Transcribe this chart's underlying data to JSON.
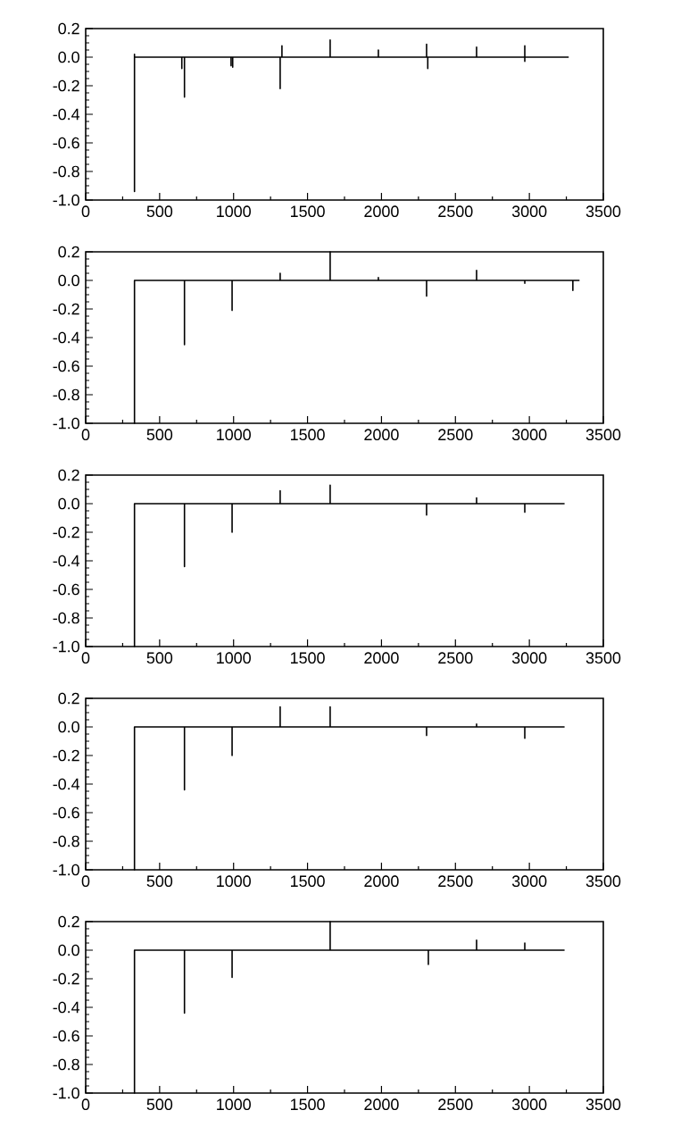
{
  "chart_data": [
    {
      "type": "line",
      "xlim": [
        0,
        3500
      ],
      "ylim": [
        -1,
        0.2
      ],
      "xticks": [
        0,
        500,
        1000,
        1500,
        2000,
        2500,
        3000,
        3500
      ],
      "yticks": [
        {
          "value": -1,
          "label": "-1.0"
        },
        {
          "value": -0.8,
          "label": "-0.8"
        },
        {
          "value": -0.6,
          "label": "-0.6"
        },
        {
          "value": -0.4,
          "label": "-0.4"
        },
        {
          "value": -0.2,
          "label": "-0.2"
        },
        {
          "value": 0,
          "label": "0.0"
        },
        {
          "value": 0.2,
          "label": "0.2"
        }
      ],
      "series": [
        {
          "color": "#000000",
          "x": [
            330,
            330,
            330,
            330,
            650,
            650,
            650,
            668,
            668,
            668,
            983,
            983,
            983,
            994,
            994,
            994,
            1315,
            1315,
            1315,
            1327,
            1327,
            1327,
            1653,
            1653,
            1653,
            1979,
            1979,
            1979,
            2305,
            2305,
            2305,
            2313,
            2313,
            2313,
            2643,
            2643,
            2643,
            2969,
            2969,
            2969,
            2969,
            3266
          ],
          "values": [
            0,
            -0.94,
            0.02,
            0,
            0,
            -0.08,
            0,
            0,
            -0.28,
            0,
            0,
            -0.06,
            0,
            0,
            -0.07,
            0,
            0,
            -0.22,
            0,
            0,
            0.08,
            0,
            0,
            0.12,
            0,
            0,
            0.05,
            0,
            0,
            0.09,
            0,
            0,
            -0.08,
            0,
            0,
            0.07,
            0,
            0,
            0.08,
            -0.03,
            0,
            0
          ]
        }
      ]
    },
    {
      "type": "line",
      "xlim": [
        0,
        3500
      ],
      "ylim": [
        -1,
        0.2
      ],
      "xticks": [
        0,
        500,
        1000,
        1500,
        2000,
        2500,
        3000,
        3500
      ],
      "yticks": [
        {
          "value": -1,
          "label": "-1.0"
        },
        {
          "value": -0.8,
          "label": "-0.8"
        },
        {
          "value": -0.6,
          "label": "-0.6"
        },
        {
          "value": -0.4,
          "label": "-0.4"
        },
        {
          "value": -0.2,
          "label": "-0.2"
        },
        {
          "value": 0,
          "label": "0.0"
        },
        {
          "value": 0.2,
          "label": "0.2"
        }
      ],
      "series": [
        {
          "color": "#000000",
          "x": [
            330,
            330,
            330,
            668,
            668,
            668,
            990,
            990,
            990,
            1315,
            1315,
            1315,
            1653,
            1653,
            1653,
            1979,
            1979,
            1979,
            2305,
            2305,
            2305,
            2643,
            2643,
            2643,
            2969,
            2969,
            2969,
            3294,
            3294,
            3294,
            3339
          ],
          "values": [
            0,
            -1,
            0,
            0,
            -0.45,
            0,
            0,
            -0.21,
            0,
            0,
            0.05,
            0,
            0,
            0.2,
            0,
            0,
            0.02,
            0,
            0,
            -0.11,
            0,
            0,
            0.07,
            0,
            0,
            -0.02,
            0,
            0,
            -0.07,
            0,
            0
          ]
        }
      ]
    },
    {
      "type": "line",
      "xlim": [
        0,
        3500
      ],
      "ylim": [
        -1,
        0.2
      ],
      "xticks": [
        0,
        500,
        1000,
        1500,
        2000,
        2500,
        3000,
        3500
      ],
      "yticks": [
        {
          "value": -1,
          "label": "-1.0"
        },
        {
          "value": -0.8,
          "label": "-0.8"
        },
        {
          "value": -0.6,
          "label": "-0.6"
        },
        {
          "value": -0.4,
          "label": "-0.4"
        },
        {
          "value": -0.2,
          "label": "-0.2"
        },
        {
          "value": 0,
          "label": "0.0"
        },
        {
          "value": 0.2,
          "label": "0.2"
        }
      ],
      "series": [
        {
          "color": "#000000",
          "x": [
            330,
            330,
            330,
            668,
            668,
            668,
            990,
            990,
            990,
            1315,
            1315,
            1315,
            1653,
            1653,
            1653,
            2305,
            2305,
            2305,
            2643,
            2643,
            2643,
            2969,
            2969,
            2969,
            3238
          ],
          "values": [
            0,
            -1,
            0,
            0,
            -0.44,
            0,
            0,
            -0.2,
            0,
            0,
            0.09,
            0,
            0,
            0.13,
            0,
            0,
            -0.08,
            0,
            0,
            0.04,
            0,
            0,
            -0.06,
            0,
            0
          ]
        }
      ]
    },
    {
      "type": "line",
      "xlim": [
        0,
        3500
      ],
      "ylim": [
        -1,
        0.2
      ],
      "xticks": [
        0,
        500,
        1000,
        1500,
        2000,
        2500,
        3000,
        3500
      ],
      "yticks": [
        {
          "value": -1,
          "label": "-1.0"
        },
        {
          "value": -0.8,
          "label": "-0.8"
        },
        {
          "value": -0.6,
          "label": "-0.6"
        },
        {
          "value": -0.4,
          "label": "-0.4"
        },
        {
          "value": -0.2,
          "label": "-0.2"
        },
        {
          "value": 0,
          "label": "0.0"
        },
        {
          "value": 0.2,
          "label": "0.2"
        }
      ],
      "series": [
        {
          "color": "#000000",
          "x": [
            330,
            330,
            330,
            668,
            668,
            668,
            990,
            990,
            990,
            1315,
            1315,
            1315,
            1653,
            1653,
            1653,
            2305,
            2305,
            2305,
            2643,
            2643,
            2643,
            2969,
            2969,
            2969,
            3238
          ],
          "values": [
            0,
            -1,
            0,
            0,
            -0.44,
            0,
            0,
            -0.2,
            0,
            0,
            0.14,
            0,
            0,
            0.14,
            0,
            0,
            -0.06,
            0,
            0,
            0.02,
            0,
            0,
            -0.08,
            0,
            0
          ]
        }
      ]
    },
    {
      "type": "line",
      "xlim": [
        0,
        3500
      ],
      "ylim": [
        -1,
        0.2
      ],
      "xticks": [
        0,
        500,
        1000,
        1500,
        2000,
        2500,
        3000,
        3500
      ],
      "yticks": [
        {
          "value": -1,
          "label": "-1.0"
        },
        {
          "value": -0.8,
          "label": "-0.8"
        },
        {
          "value": -0.6,
          "label": "-0.6"
        },
        {
          "value": -0.4,
          "label": "-0.4"
        },
        {
          "value": -0.2,
          "label": "-0.2"
        },
        {
          "value": 0,
          "label": "0.0"
        },
        {
          "value": 0.2,
          "label": "0.2"
        }
      ],
      "series": [
        {
          "color": "#000000",
          "x": [
            330,
            330,
            330,
            668,
            668,
            668,
            990,
            990,
            990,
            1653,
            1653,
            1653,
            2317,
            2317,
            2317,
            2643,
            2643,
            2643,
            2969,
            2969,
            2969,
            3238
          ],
          "values": [
            0,
            -1,
            0,
            0,
            -0.44,
            0,
            0,
            -0.19,
            0,
            0,
            0.2,
            0,
            0,
            -0.1,
            0,
            0,
            0.07,
            0,
            0,
            0.05,
            0,
            0
          ]
        }
      ]
    }
  ]
}
